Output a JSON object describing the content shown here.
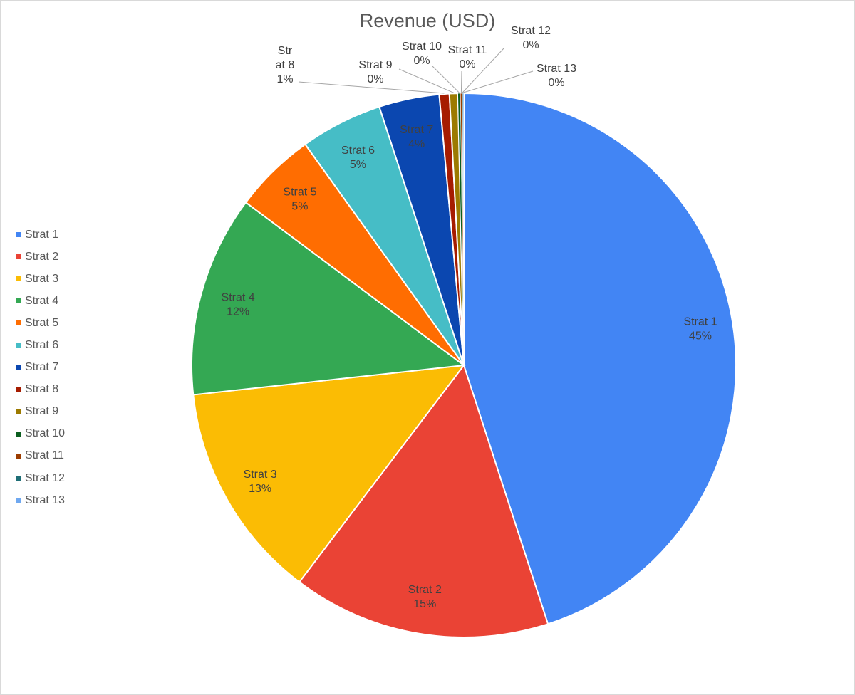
{
  "chart_data": {
    "type": "pie",
    "title": "Revenue (USD)",
    "legend_position": "left",
    "slices": [
      {
        "name": "Strat 1",
        "value": 45.2,
        "label": "45%",
        "color": "#4285F4"
      },
      {
        "name": "Strat 2",
        "value": 15.4,
        "label": "15%",
        "color": "#EA4335"
      },
      {
        "name": "Strat 3",
        "value": 13.0,
        "label": "13%",
        "color": "#FBBC04"
      },
      {
        "name": "Strat 4",
        "value": 12.0,
        "label": "12%",
        "color": "#34A853"
      },
      {
        "name": "Strat 5",
        "value": 4.9,
        "label": "5%",
        "color": "#FF6D01"
      },
      {
        "name": "Strat 6",
        "value": 4.9,
        "label": "5%",
        "color": "#46BDC6"
      },
      {
        "name": "Strat 7",
        "value": 3.6,
        "label": "4%",
        "color": "#0B47B0"
      },
      {
        "name": "Strat 8",
        "value": 0.6,
        "label": "1%",
        "color": "#A61C00"
      },
      {
        "name": "Strat 9",
        "value": 0.5,
        "label": "0%",
        "color": "#9C7A00"
      },
      {
        "name": "Strat 10",
        "value": 0.15,
        "label": "0%",
        "color": "#0B5E1F"
      },
      {
        "name": "Strat 11",
        "value": 0.1,
        "label": "0%",
        "color": "#9C3C00"
      },
      {
        "name": "Strat 12",
        "value": 0.05,
        "label": "0%",
        "color": "#1E6E76"
      },
      {
        "name": "Strat 13",
        "value": 0.05,
        "label": "0%",
        "color": "#6FA8F0"
      }
    ]
  }
}
